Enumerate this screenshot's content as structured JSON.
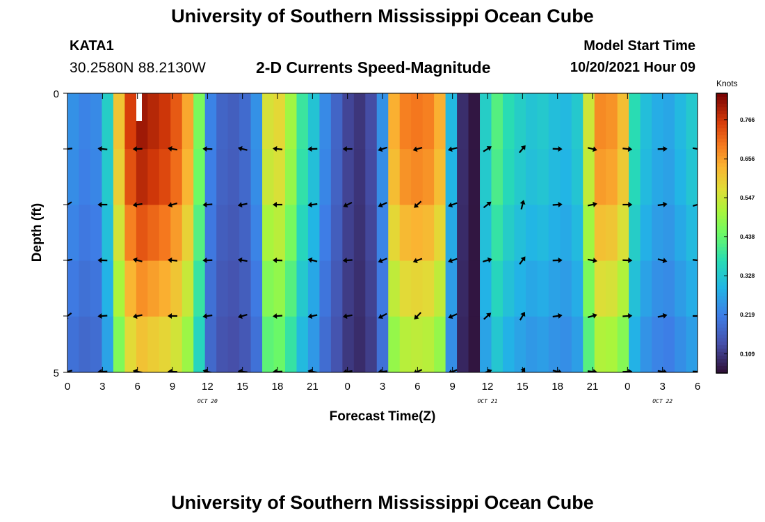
{
  "header": {
    "title_top": "University of Southern Mississippi Ocean Cube",
    "station": "KATA1",
    "coordinates": "30.2580N  88.2130W",
    "chart_title": "2-D Currents Speed-Magnitude",
    "model_start_label": "Model Start Time",
    "model_start_value": "10/20/2021 Hour 09",
    "title_bottom": "University of Southern Mississippi Ocean Cube"
  },
  "chart_data": {
    "type": "heatmap",
    "title": "2-D Currents Speed-Magnitude",
    "xlabel": "Forecast Time(Z)",
    "ylabel": "Depth (ft)",
    "x_range": [
      0,
      54
    ],
    "y_range": [
      0,
      5
    ],
    "x_tick_values": [
      0,
      3,
      6,
      9,
      12,
      15,
      18,
      21,
      24,
      27,
      30,
      33,
      36,
      39,
      42,
      45,
      48,
      51,
      54
    ],
    "x_tick_labels": [
      "0",
      "3",
      "6",
      "9",
      "12",
      "15",
      "18",
      "21",
      "0",
      "3",
      "6",
      "9",
      "12",
      "15",
      "18",
      "21",
      "0",
      "3",
      "6"
    ],
    "y_tick_labels": [
      "0",
      "5"
    ],
    "date_labels": [
      {
        "text": "OCT 20",
        "x": 12
      },
      {
        "text": "OCT 21",
        "x": 36
      },
      {
        "text": "OCT 22",
        "x": 51
      }
    ],
    "colorbar": {
      "unit": "Knots",
      "min": 0.055,
      "max": 0.84,
      "tick_labels": [
        "0.766",
        "0.656",
        "0.547",
        "0.438",
        "0.328",
        "0.219",
        "0.109"
      ],
      "tick_values": [
        0.766,
        0.656,
        0.547,
        0.438,
        0.328,
        0.219,
        0.109
      ]
    },
    "speed_profile_by_hour": [
      0.24,
      0.22,
      0.23,
      0.34,
      0.61,
      0.76,
      0.81,
      0.79,
      0.77,
      0.73,
      0.65,
      0.46,
      0.22,
      0.17,
      0.16,
      0.18,
      0.24,
      0.56,
      0.58,
      0.5,
      0.39,
      0.32,
      0.23,
      0.17,
      0.12,
      0.1,
      0.13,
      0.24,
      0.64,
      0.69,
      0.7,
      0.69,
      0.64,
      0.3,
      0.09,
      0.06,
      0.34,
      0.42,
      0.37,
      0.34,
      0.32,
      0.33,
      0.31,
      0.3,
      0.33,
      0.55,
      0.68,
      0.67,
      0.62,
      0.37,
      0.31,
      0.28,
      0.27,
      0.3,
      0.33
    ],
    "depth_factors": [
      1.0,
      0.97,
      0.9,
      0.82,
      0.74
    ],
    "vector_rows": 5,
    "vector_columns": 19
  }
}
